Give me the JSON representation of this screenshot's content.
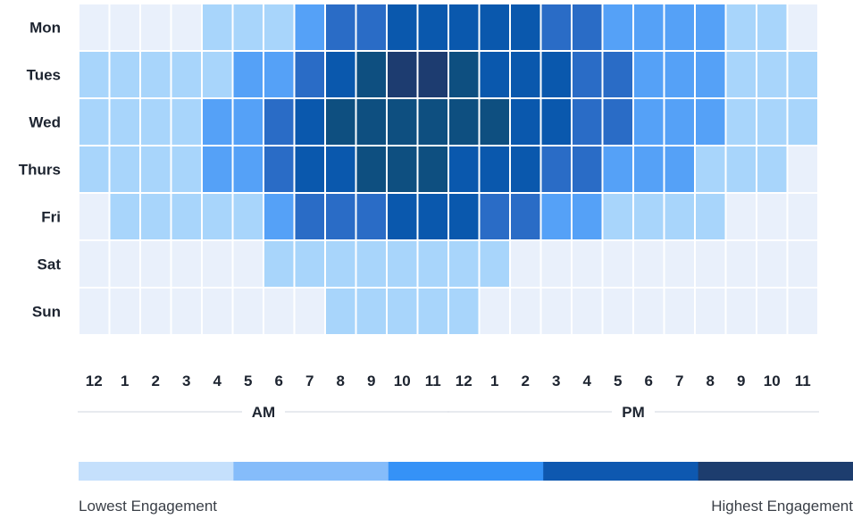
{
  "chart_data": {
    "type": "heatmap",
    "title": "",
    "xlabel": "",
    "ylabel": "",
    "rows": [
      "Mon",
      "Tues",
      "Wed",
      "Thurs",
      "Fri",
      "Sat",
      "Sun"
    ],
    "columns": [
      "12",
      "1",
      "2",
      "3",
      "4",
      "5",
      "6",
      "7",
      "8",
      "9",
      "10",
      "11",
      "12",
      "1",
      "2",
      "3",
      "4",
      "5",
      "6",
      "7",
      "8",
      "9",
      "10",
      "11"
    ],
    "periods": [
      {
        "label": "AM",
        "start": 0,
        "end": 11
      },
      {
        "label": "PM",
        "start": 12,
        "end": 23
      }
    ],
    "levels": [
      [
        0,
        0,
        0,
        0,
        1,
        1,
        1,
        2,
        3,
        3,
        4,
        4,
        4,
        4,
        4,
        3,
        3,
        2,
        2,
        2,
        2,
        1,
        1,
        0
      ],
      [
        1,
        1,
        1,
        1,
        1,
        2,
        2,
        3,
        4,
        5,
        6,
        6,
        5,
        4,
        4,
        4,
        3,
        3,
        2,
        2,
        2,
        1,
        1,
        1
      ],
      [
        1,
        1,
        1,
        1,
        2,
        2,
        3,
        4,
        5,
        5,
        5,
        5,
        5,
        5,
        4,
        4,
        3,
        3,
        2,
        2,
        2,
        1,
        1,
        1
      ],
      [
        1,
        1,
        1,
        1,
        2,
        2,
        3,
        4,
        4,
        5,
        5,
        5,
        4,
        4,
        4,
        3,
        3,
        2,
        2,
        2,
        1,
        1,
        1,
        0
      ],
      [
        0,
        1,
        1,
        1,
        1,
        1,
        2,
        3,
        3,
        3,
        4,
        4,
        4,
        3,
        3,
        2,
        2,
        1,
        1,
        1,
        1,
        0,
        0,
        0
      ],
      [
        0,
        0,
        0,
        0,
        0,
        0,
        1,
        1,
        1,
        1,
        1,
        1,
        1,
        1,
        0,
        0,
        0,
        0,
        0,
        0,
        0,
        0,
        0,
        0
      ],
      [
        0,
        0,
        0,
        0,
        0,
        0,
        0,
        0,
        1,
        1,
        1,
        1,
        1,
        0,
        0,
        0,
        0,
        0,
        0,
        0,
        0,
        0,
        0,
        0
      ]
    ],
    "cell_colors": [
      "#e9f0fb",
      "#a8d5fb",
      "#55a1f7",
      "#2a6cc6",
      "#0a58ad",
      "#0e4f80",
      "#1d3c70"
    ],
    "legend": {
      "colors": [
        "#c5e0fc",
        "#85bcfa",
        "#3592f7",
        "#0e58b0",
        "#1d3d6e"
      ],
      "low_label": "Lowest Engagement",
      "high_label": "Highest Engagement"
    }
  }
}
